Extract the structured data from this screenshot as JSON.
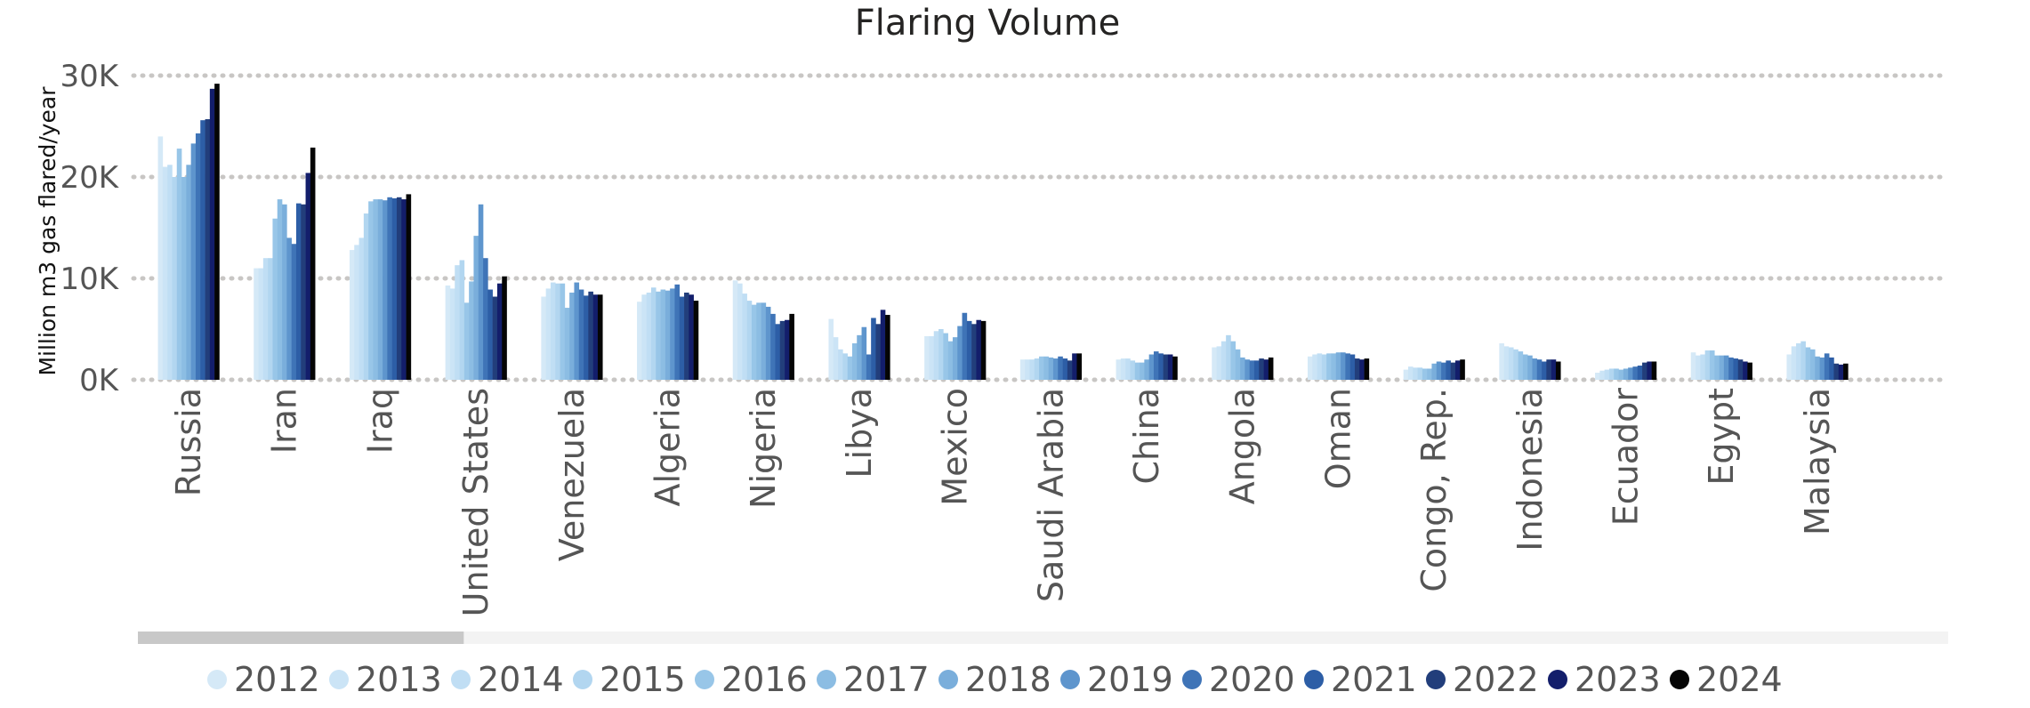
{
  "chart_data": {
    "type": "bar",
    "title": "Flaring Volume",
    "ylabel": "Million m3 gas flared/year",
    "xlabel": "",
    "ylim": [
      0,
      30000
    ],
    "yticks": [
      0,
      10000,
      20000,
      30000
    ],
    "ytick_labels": [
      "0K",
      "10K",
      "20K",
      "30K"
    ],
    "grid": true,
    "legend_position": "bottom",
    "categories": [
      "Russia",
      "Iran",
      "Iraq",
      "United States",
      "Venezuela",
      "Algeria",
      "Nigeria",
      "Libya",
      "Mexico",
      "Saudi Arabia",
      "China",
      "Angola",
      "Oman",
      "Congo, Rep.",
      "Indonesia",
      "Ecuador",
      "Egypt",
      "Malaysia"
    ],
    "series": [
      {
        "name": "2012",
        "color": "#d5e9f7",
        "values": [
          24000,
          11000,
          12800,
          9300,
          8200,
          7700,
          9800,
          6000,
          4300,
          2000,
          2000,
          3200,
          2300,
          1000,
          3600,
          700,
          2700,
          2500
        ]
      },
      {
        "name": "2013",
        "color": "#cbe4f6",
        "values": [
          21000,
          11000,
          13300,
          9000,
          9000,
          8400,
          9500,
          4200,
          4300,
          2000,
          2100,
          3300,
          2500,
          1300,
          3300,
          900,
          2400,
          3300
        ]
      },
      {
        "name": "2014",
        "color": "#c0def4",
        "values": [
          21200,
          12000,
          14000,
          11300,
          9600,
          8600,
          8500,
          3000,
          4800,
          2000,
          2100,
          3800,
          2600,
          1200,
          3200,
          1000,
          2500,
          3600
        ]
      },
      {
        "name": "2015",
        "color": "#b2d6f0",
        "values": [
          20000,
          12000,
          16400,
          11800,
          9500,
          9100,
          7800,
          2600,
          5000,
          2100,
          1900,
          4400,
          2500,
          1200,
          3000,
          1100,
          2900,
          3800
        ]
      },
      {
        "name": "2016",
        "color": "#98c6e8",
        "values": [
          22800,
          15900,
          17600,
          7600,
          9500,
          8700,
          7400,
          2300,
          4600,
          2300,
          1700,
          3800,
          2600,
          1100,
          2800,
          1100,
          2900,
          3200
        ]
      },
      {
        "name": "2017",
        "color": "#8cbde3",
        "values": [
          20000,
          17800,
          17800,
          9700,
          7100,
          8900,
          7600,
          3600,
          3800,
          2300,
          1700,
          3000,
          2600,
          1100,
          2500,
          1000,
          2400,
          3000
        ]
      },
      {
        "name": "2018",
        "color": "#7aaedb",
        "values": [
          21200,
          17300,
          17800,
          14200,
          8600,
          8800,
          7600,
          4400,
          4200,
          2200,
          2000,
          2200,
          2700,
          1600,
          2400,
          1100,
          2400,
          2300
        ]
      },
      {
        "name": "2019",
        "color": "#5e95cd",
        "values": [
          23300,
          14000,
          17700,
          17300,
          9600,
          9000,
          7200,
          5200,
          5300,
          2100,
          2500,
          2000,
          2700,
          1800,
          2100,
          1200,
          2400,
          2200
        ]
      },
      {
        "name": "2020",
        "color": "#3f74b7",
        "values": [
          24300,
          13400,
          18000,
          12000,
          8900,
          9400,
          6500,
          2500,
          6600,
          2300,
          2800,
          1900,
          2600,
          1700,
          2000,
          1300,
          2200,
          2600
        ]
      },
      {
        "name": "2021",
        "color": "#2d5ea6",
        "values": [
          25600,
          17400,
          17900,
          8900,
          8300,
          8200,
          5500,
          6100,
          5800,
          2100,
          2600,
          1900,
          2500,
          1900,
          1800,
          1400,
          2100,
          2200
        ]
      },
      {
        "name": "2022",
        "color": "#223e7b",
        "values": [
          25700,
          17300,
          18000,
          8200,
          8700,
          8600,
          5800,
          5500,
          5500,
          1900,
          2500,
          2100,
          2100,
          1700,
          2000,
          1700,
          2000,
          1600
        ]
      },
      {
        "name": "2023",
        "color": "#131e6b",
        "values": [
          28700,
          20400,
          17800,
          9500,
          8400,
          8400,
          5900,
          6900,
          5900,
          2600,
          2500,
          2000,
          2000,
          1900,
          2000,
          1800,
          1800,
          1500
        ]
      },
      {
        "name": "2024",
        "color": "#050505",
        "values": [
          29200,
          22900,
          18300,
          10200,
          8400,
          7800,
          6500,
          6400,
          5800,
          2600,
          2300,
          2200,
          2100,
          2000,
          1800,
          1800,
          1700,
          1600
        ]
      }
    ]
  },
  "ui": {
    "scrollbar": {
      "visible_fraction": 0.18,
      "track_color": "#f3f3f3",
      "thumb_color": "#c8c8c8"
    },
    "grid_color": "#c8c6c4"
  }
}
